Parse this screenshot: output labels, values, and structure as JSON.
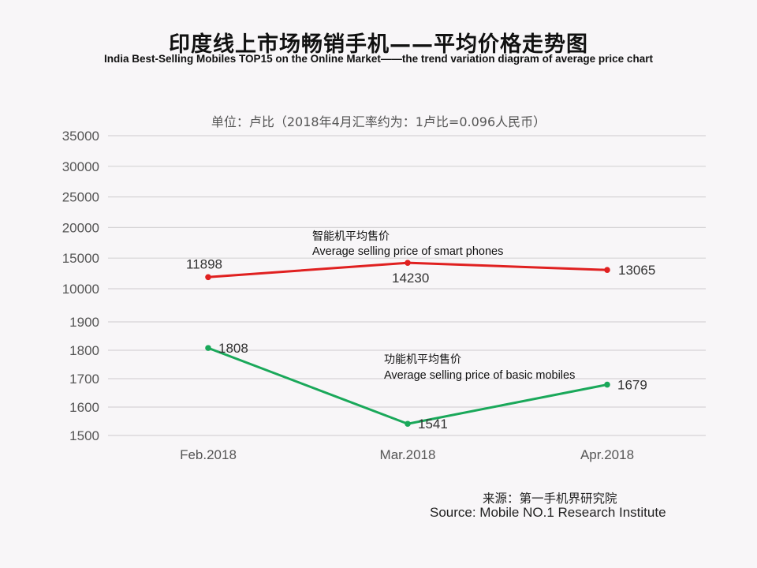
{
  "header": {
    "title_cn": "印度线上市场畅销手机——平均价格走势图",
    "title_en": "India Best-Selling  Mobiles TOP15 on the Online Market——the trend variation diagram of average price chart",
    "unit_note": "单位：卢比（2018年4月汇率约为：1卢比=0.096人民币）"
  },
  "footer": {
    "source_cn": "来源：第一手机界研究院",
    "source_en": "Source: Mobile NO.1 Research Institute"
  },
  "colors": {
    "smart": "#e02020",
    "basic": "#1aa85a",
    "grid": "#d6d4d6",
    "axis_text": "#555555",
    "background": "#f8f6f8"
  },
  "chart_data": [
    {
      "type": "line",
      "title": "智能机平均售价 / Average selling price of smart phones",
      "categories": [
        "Feb.2018",
        "Mar.2018",
        "Apr.2018"
      ],
      "series": [
        {
          "name": "智能机平均售价 Average selling price of smart phones",
          "label_cn": "智能机平均售价",
          "label_en": "Average selling price of smart phones",
          "values": [
            11898,
            14230,
            13065
          ],
          "color": "#e02020"
        }
      ],
      "xlabel": "",
      "ylabel": "卢比",
      "yticks": [
        10000,
        15000,
        20000,
        25000,
        30000,
        35000
      ],
      "ytick_labels": [
        "10000",
        "15000",
        "20000",
        "25000",
        "30000",
        "35000"
      ],
      "ylim": [
        10000,
        35000
      ],
      "grid": true,
      "legend": "inline annotation"
    },
    {
      "type": "line",
      "title": "功能机平均售价 / Average selling price of basic mobiles",
      "categories": [
        "Feb.2018",
        "Mar.2018",
        "Apr.2018"
      ],
      "series": [
        {
          "name": "功能机平均售价 Average selling price of basic mobiles",
          "label_cn": "功能机平均售价",
          "label_en": "Average selling price of basic mobiles",
          "values": [
            1808,
            1541,
            1679
          ],
          "color": "#1aa85a"
        }
      ],
      "xlabel": "",
      "ylabel": "卢比",
      "yticks": [
        1500,
        1600,
        1700,
        1800,
        1900
      ],
      "ytick_labels": [
        "1500",
        "1600",
        "1700",
        "1800",
        "1900"
      ],
      "ylim": [
        1500,
        1900
      ],
      "grid": true,
      "legend": "inline annotation"
    }
  ]
}
